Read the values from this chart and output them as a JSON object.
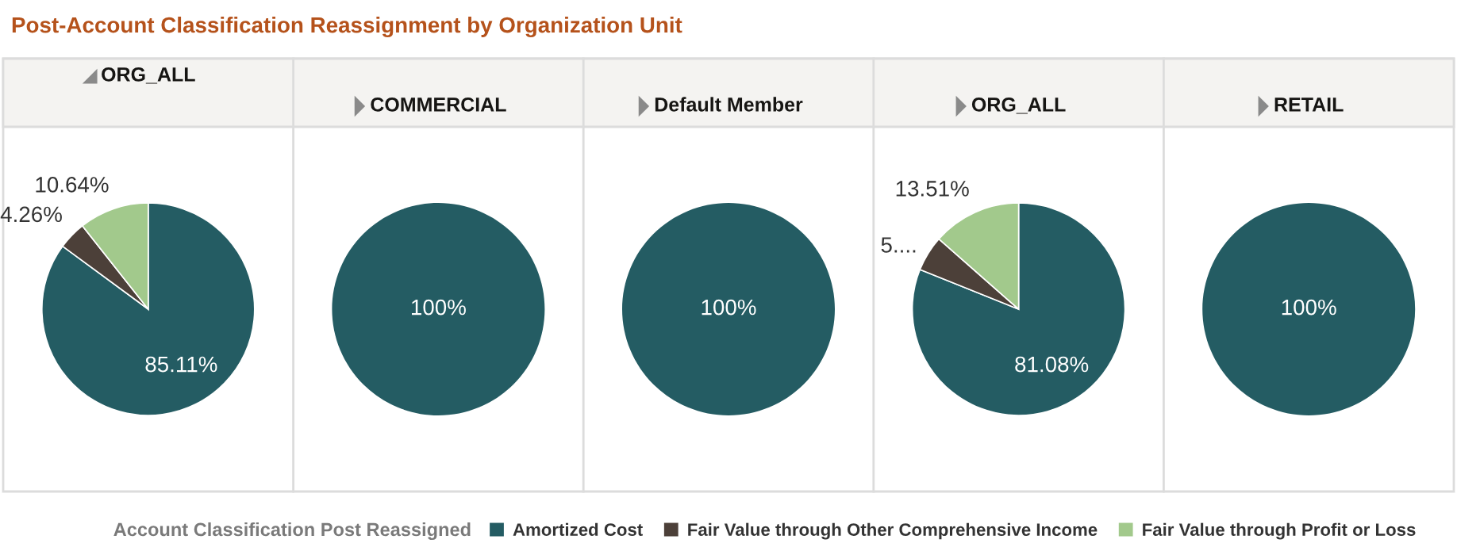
{
  "chart_data": [
    {
      "type": "pie",
      "title": "Post-Account Classification Reassignment by Organization Unit",
      "subtitle": "ORG_ALL",
      "legend_title": "Account Classification Post Reassigned",
      "legend": "bottom",
      "categories": [
        "Amortized Cost",
        "Fair Value through Other Comprehensive Income",
        "Fair Value through Profit or Loss"
      ],
      "values": [
        85.11,
        4.26,
        10.64
      ],
      "colors": [
        "#245c63",
        "#4c4039",
        "#a2c98c"
      ],
      "value_labels": [
        "85.11%",
        "4.26%",
        "10.64%"
      ]
    },
    {
      "type": "pie",
      "subtitle": "COMMERCIAL",
      "categories": [
        null
      ],
      "values": [
        100
      ],
      "colors": [
        "#245c63"
      ],
      "value_labels": [
        "100%"
      ]
    },
    {
      "type": "pie",
      "subtitle": "Default Member",
      "categories": [
        null
      ],
      "values": [
        100
      ],
      "colors": [
        "#245c63"
      ],
      "value_labels": [
        "100%"
      ]
    },
    {
      "type": "pie",
      "subtitle": "ORG_ALL",
      "categories": [
        null,
        null,
        null
      ],
      "values": [
        81.08,
        5.41,
        13.51
      ],
      "colors": [
        "#245c63",
        "#4c4039",
        "#a2c98c"
      ],
      "value_labels": [
        "81.08%",
        "5....",
        "13.51%"
      ]
    },
    {
      "type": "pie",
      "subtitle": "RETAIL",
      "categories": [
        null
      ],
      "values": [
        100
      ],
      "colors": [
        "#245c63"
      ],
      "value_labels": [
        "100%"
      ]
    }
  ]
}
